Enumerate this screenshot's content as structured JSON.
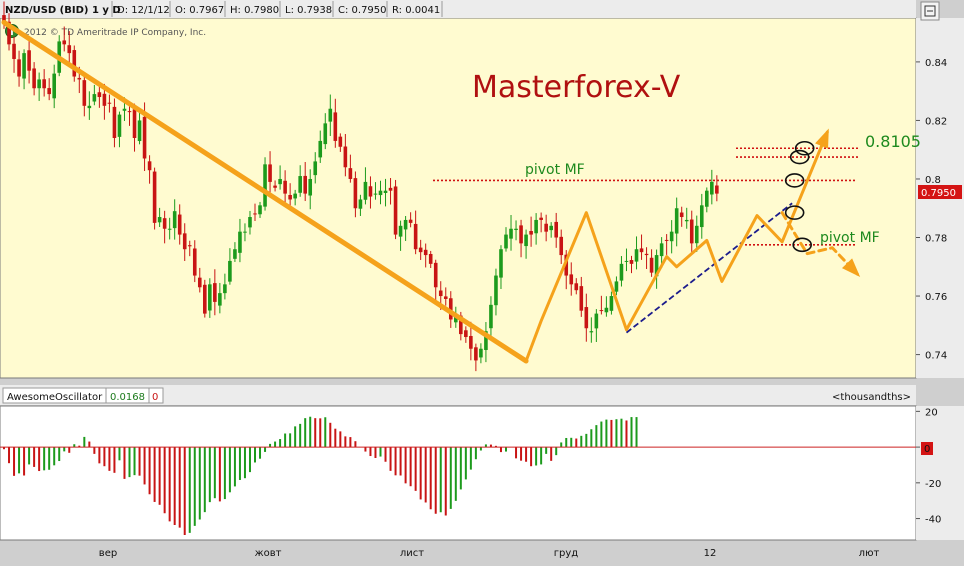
{
  "header": {
    "symbol": "NZD/USD (BID) 1 у D",
    "date": "D: 12/1/12",
    "open": "O: 0.7967",
    "high": "H: 0.7980",
    "low": "L: 0.7938",
    "close": "C: 0.7950",
    "range": "R: 0.0041",
    "copyright": "2012 © TD Ameritrade IP Company, Inc.",
    "info_icon": "info-icon",
    "menu_icon": "chart-menu-icon"
  },
  "watermark": "Masterforex-V",
  "annotations": {
    "pivot_upper": "pivot MF",
    "pivot_lower": "pivot MF",
    "level_label": "0.8105",
    "price_tag": "0.7950"
  },
  "colors": {
    "background": "#fffbd0",
    "bull": "#1c9a1c",
    "bear": "#c81414",
    "orange": "#f5a21b",
    "dotted": "#d01010",
    "trendline": "#1c1c8c",
    "watermark": "#b01010",
    "annotation_green": "#1e8a1e"
  },
  "oscillator": {
    "name": "AwesomeOscillator",
    "value": "0.0168",
    "zero": "0",
    "units": "<thousandths>",
    "zero_tag": "0"
  },
  "x_axis": {
    "labels": [
      "вер",
      "жовт",
      "лист",
      "груд",
      "12",
      "лют"
    ]
  },
  "chart_data": [
    {
      "type": "candlestick",
      "title": "NZD/USD (BID) 1 у D",
      "ylim": [
        0.732,
        0.855
      ],
      "yticks": [
        0.74,
        0.76,
        0.78,
        0.8,
        0.82,
        0.84
      ],
      "ytick_labels": [
        "0.74",
        "0.76",
        "0.78",
        "0.8",
        "0.82",
        "0.84"
      ],
      "last_close": 0.795,
      "levels": [
        0.8105,
        0.8075,
        0.7995,
        0.7775
      ],
      "trend_points": [
        0.853,
        0.846,
        0.841,
        0.835,
        0.843,
        0.837,
        0.831,
        0.834,
        0.831,
        0.829,
        0.836,
        0.847,
        0.846,
        0.843,
        0.835,
        0.834,
        0.825,
        0.825,
        0.829,
        0.828,
        0.825,
        0.826,
        0.814,
        0.822,
        0.824,
        0.823,
        0.814,
        0.82,
        0.807,
        0.803,
        0.785,
        0.787,
        0.783,
        0.783,
        0.789,
        0.781,
        0.776,
        0.777,
        0.767,
        0.763,
        0.754,
        0.764,
        0.758,
        0.761,
        0.764,
        0.772,
        0.776,
        0.782,
        0.782,
        0.787,
        0.788,
        0.791,
        0.805,
        0.799,
        0.797,
        0.8,
        0.795,
        0.793,
        0.795,
        0.801,
        0.795,
        0.8,
        0.806,
        0.813,
        0.819,
        0.824,
        0.813,
        0.811,
        0.804,
        0.8,
        0.79,
        0.793,
        0.799,
        0.794,
        0.795,
        0.796,
        0.796,
        0.796,
        0.781,
        0.784,
        0.786,
        0.785,
        0.776,
        0.775,
        0.774,
        0.771,
        0.763,
        0.76,
        0.759,
        0.752,
        0.754,
        0.747,
        0.746,
        0.742,
        0.738,
        0.742,
        0.748,
        0.757,
        0.767,
        0.776,
        0.781,
        0.783,
        0.783,
        0.778,
        0.781,
        0.781,
        0.786,
        0.786,
        0.782,
        0.784,
        0.78,
        0.774,
        0.767,
        0.764,
        0.762,
        0.755,
        0.749,
        0.748,
        0.754,
        0.755,
        0.756,
        0.76,
        0.765,
        0.771,
        0.772,
        0.771,
        0.776,
        0.775,
        0.774,
        0.768,
        0.774,
        0.778,
        0.779,
        0.782,
        0.79,
        0.787,
        0.786,
        0.778,
        0.784,
        0.791,
        0.796,
        0.799,
        0.795
      ],
      "orange_paths": [
        {
          "points": [
            [
              0,
              0.8535
            ],
            [
              104,
              0.7378
            ]
          ],
          "width": 5,
          "dashed": false
        },
        {
          "points": [
            [
              104,
              0.7378
            ],
            [
              107,
              0.7515
            ],
            [
              116,
              0.7885
            ],
            [
              124,
              0.7485
            ],
            [
              132,
              0.7735
            ],
            [
              134,
              0.77
            ],
            [
              140,
              0.779
            ],
            [
              143,
              0.765
            ],
            [
              150,
              0.7875
            ],
            [
              155,
              0.7785
            ],
            [
              161,
              0.8035
            ],
            [
              164,
              0.816
            ]
          ],
          "width": 3,
          "dashed": false,
          "arrow": true
        },
        {
          "points": [
            [
              155,
              0.7885
            ],
            [
              158,
              0.78
            ],
            [
              160,
              0.7745
            ],
            [
              165,
              0.7765
            ],
            [
              170,
              0.7675
            ]
          ],
          "width": 3,
          "dashed": true,
          "arrow": true
        }
      ],
      "blue_trendline": [
        [
          124,
          0.7475
        ],
        [
          157,
          0.7917
        ]
      ],
      "circles": [
        {
          "x": 157.5,
          "y": 0.7995
        },
        {
          "x": 158.5,
          "y": 0.8075
        },
        {
          "x": 159.5,
          "y": 0.8105
        },
        {
          "x": 157.5,
          "y": 0.7885
        },
        {
          "x": 159.0,
          "y": 0.7775
        }
      ]
    },
    {
      "type": "bar",
      "title": "AwesomeOscillator",
      "ylim": [
        -52,
        23
      ],
      "yticks": [
        20,
        0,
        -20,
        -40
      ],
      "ytick_labels": [
        "20",
        "0",
        "-20",
        "-40"
      ],
      "values": [
        -1.2,
        -9.0,
        -16.1,
        -14.7,
        -15.9,
        -9.7,
        -11.1,
        -13.4,
        -13.0,
        -12.7,
        -10.2,
        -7.8,
        -2.4,
        -3.2,
        1.6,
        0.8,
        5.7,
        3.1,
        -3.8,
        -9.1,
        -10.7,
        -13.3,
        -14.4,
        -7.4,
        -17.8,
        -16.8,
        -15.7,
        -16.0,
        -20.9,
        -26.4,
        -30.7,
        -32.3,
        -37.0,
        -41.6,
        -43.6,
        -45.1,
        -49.2,
        -48.0,
        -44.1,
        -40.5,
        -36.4,
        -30.8,
        -28.6,
        -30.4,
        -29.1,
        -25.3,
        -22.0,
        -18.4,
        -17.4,
        -14.0,
        -8.6,
        -6.5,
        -2.7,
        1.8,
        3.1,
        4.5,
        7.6,
        7.7,
        11.6,
        13.0,
        16.2,
        17.0,
        16.2,
        16.1,
        16.7,
        13.6,
        10.3,
        8.8,
        6.0,
        5.6,
        3.3,
        0.0,
        -2.5,
        -5.0,
        -6.1,
        -5.3,
        -8.2,
        -13.3,
        -15.8,
        -15.9,
        -20.3,
        -21.9,
        -24.5,
        -29.3,
        -31.0,
        -34.8,
        -37.3,
        -36.5,
        -38.3,
        -34.6,
        -30.1,
        -23.7,
        -18.1,
        -12.6,
        -6.8,
        -1.9,
        1.5,
        1.4,
        0.7,
        -2.8,
        -2.5,
        -0.1,
        -6.3,
        -7.6,
        -8.2,
        -10.7,
        -10.3,
        -9.7,
        -3.8,
        -7.7,
        -4.5,
        2.6,
        5.1,
        5.2,
        4.8,
        6.3,
        7.4,
        10.0,
        12.3,
        14.3,
        15.4,
        15.2,
        15.6,
        15.9,
        14.9,
        16.8,
        16.8
      ]
    }
  ]
}
